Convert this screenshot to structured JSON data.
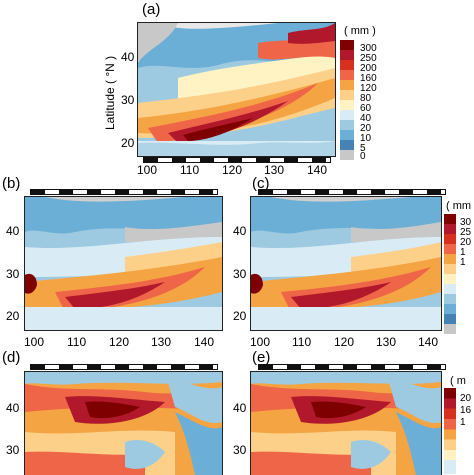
{
  "panels": {
    "a": "(a)",
    "b": "(b)",
    "c": "(c)",
    "d": "(d)",
    "e": "(e)"
  },
  "axis": {
    "ylabel": "Latitude ( °N )",
    "lon_ticks": [
      "100",
      "110",
      "120",
      "130",
      "140"
    ],
    "lat_ticks_a": [
      "40",
      "30",
      "20"
    ],
    "lat_ticks_b": [
      "40",
      "30",
      "20"
    ],
    "lat_ticks_c": [
      "40",
      "30",
      "20"
    ],
    "lat_ticks_d": [
      "40",
      "30"
    ],
    "lat_ticks_e": [
      "40",
      "30"
    ]
  },
  "colorbar_a": {
    "unit": "( mm )",
    "labels": [
      "300",
      "250",
      "200",
      "160",
      "120",
      "80",
      "60",
      "40",
      "20",
      "10",
      "5",
      "0"
    ]
  },
  "colorbar_c": {
    "unit": "( mm",
    "labels": [
      "30",
      "25",
      "20",
      "1",
      "1"
    ]
  },
  "colorbar_e": {
    "unit": "( m",
    "labels": [
      "20",
      "16",
      "1"
    ]
  },
  "colors": {
    "scale": [
      "#7f0000",
      "#b2182b",
      "#d7301f",
      "#ef6548",
      "#f4a442",
      "#fdd08a",
      "#fff3c4",
      "#d9ecf5",
      "#9ecae1",
      "#6baed6",
      "#4682b4",
      "#c8c8c8"
    ],
    "land_gray": "#cfcfcf"
  }
}
